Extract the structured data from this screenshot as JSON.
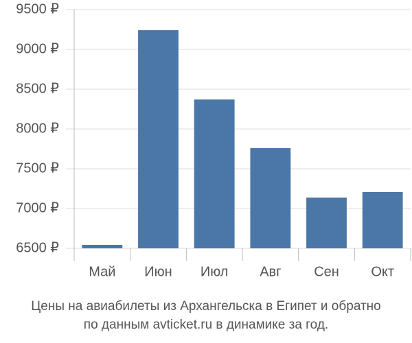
{
  "chart_data": {
    "type": "bar",
    "title": [
      "Цены на авиабилеты из Архангельска в Египет и обратно",
      "по данным avticket.ru в динамике за год."
    ],
    "categories": [
      "Май",
      "Июн",
      "Июл",
      "Авг",
      "Сен",
      "Окт"
    ],
    "values": [
      6543,
      9241,
      8371,
      7759,
      7138,
      7207
    ],
    "color": "#4a76a8",
    "ylim": [
      6500,
      9500
    ],
    "yticks": [
      {
        "value": 6500,
        "label": "6500 ₽"
      },
      {
        "value": 7000,
        "label": "7000 ₽"
      },
      {
        "value": 7500,
        "label": "7500 ₽"
      },
      {
        "value": 8000,
        "label": "8000 ₽"
      },
      {
        "value": 8500,
        "label": "8500 ₽"
      },
      {
        "value": 9000,
        "label": "9000 ₽"
      },
      {
        "value": 9500,
        "label": "9500 ₽"
      }
    ],
    "grid": true
  }
}
